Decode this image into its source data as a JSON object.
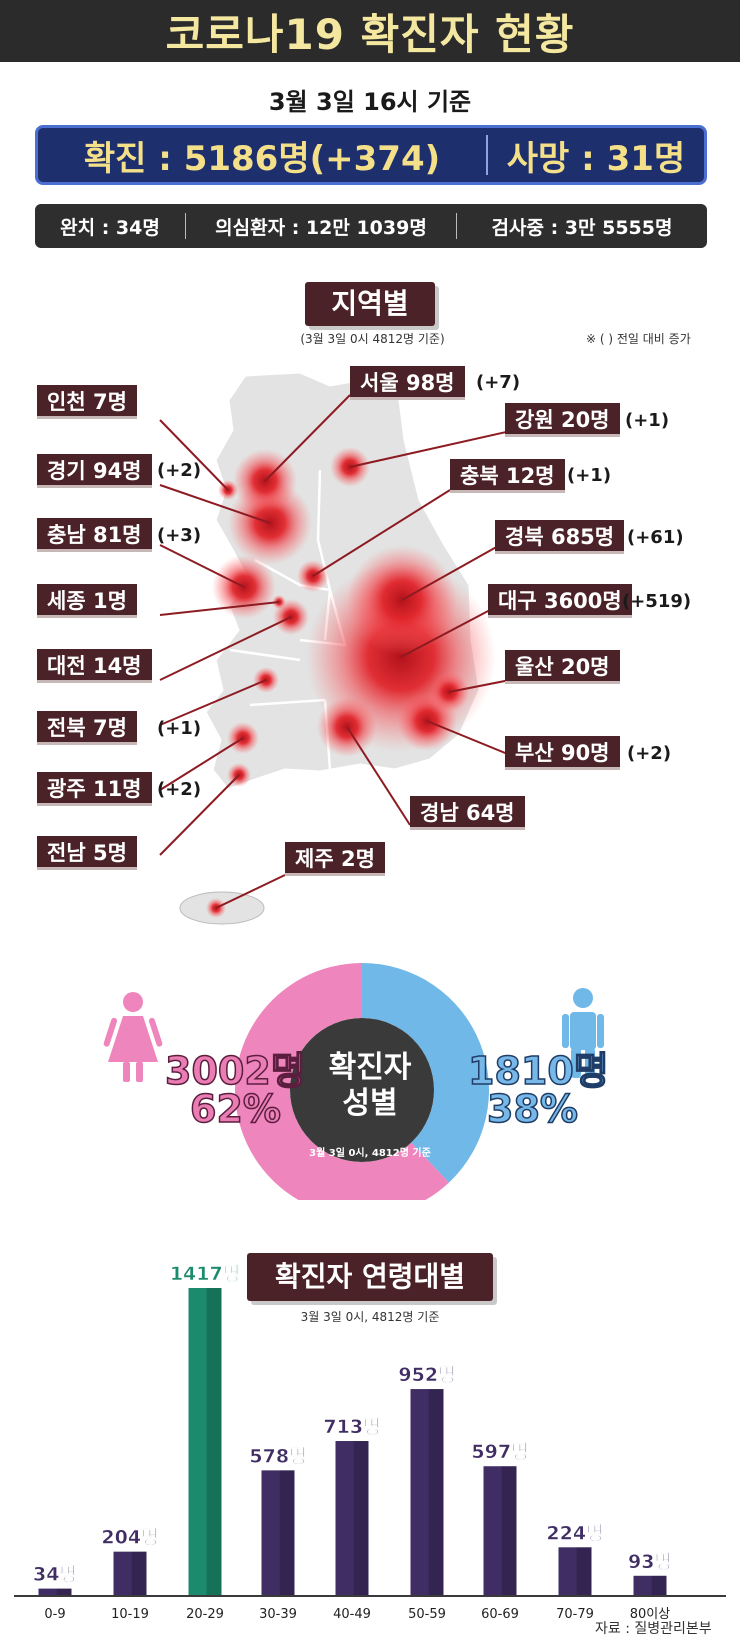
{
  "header": {
    "title": "코로나19 확진자 현황",
    "date": "3월 3일 16시 기준"
  },
  "summary": {
    "confirmed": "확진 : 5186명(+374)",
    "death": "사망 : 31명",
    "recovered": "완치 : 34명",
    "suspected": "의심환자 : 12만 1039명",
    "testing": "검사중 : 3만 5555명"
  },
  "regional": {
    "tag": "지역별",
    "note": "(3월 3일 0시 4812명 기준)",
    "prev_note": "※ ( ) 전일 대비 증가",
    "regions": [
      {
        "label": "인천 7명",
        "change": ""
      },
      {
        "label": "서울 98명",
        "change": "(+7)"
      },
      {
        "label": "강원 20명",
        "change": "(+1)"
      },
      {
        "label": "경기 94명",
        "change": "(+2)"
      },
      {
        "label": "충북 12명",
        "change": "(+1)"
      },
      {
        "label": "충남 81명",
        "change": "(+3)"
      },
      {
        "label": "경북 685명",
        "change": "(+61)"
      },
      {
        "label": "세종 1명",
        "change": ""
      },
      {
        "label": "대구 3600명",
        "change": "(+519)"
      },
      {
        "label": "대전 14명",
        "change": ""
      },
      {
        "label": "울산 20명",
        "change": ""
      },
      {
        "label": "전북 7명",
        "change": "(+1)"
      },
      {
        "label": "부산 90명",
        "change": "(+2)"
      },
      {
        "label": "광주 11명",
        "change": "(+2)"
      },
      {
        "label": "경남 64명",
        "change": ""
      },
      {
        "label": "전남 5명",
        "change": ""
      },
      {
        "label": "제주 2명",
        "change": ""
      }
    ]
  },
  "gender": {
    "center_title_1": "확진자",
    "center_title_2": "성별",
    "center_note": "3월 3일 0시, 4812명 기준",
    "female_count": "3002명",
    "female_pct": "62%",
    "male_count": "1810명",
    "male_pct": "38%",
    "female_color": "#ee86bd",
    "male_color": "#6fb8e8"
  },
  "age": {
    "tag": "확진자 연령대별",
    "note": "3월 3일 0시, 4812명 기준"
  },
  "chart_data": {
    "type": "bar",
    "categories": [
      "0-9",
      "10-19",
      "20-29",
      "30-39",
      "40-49",
      "50-59",
      "60-69",
      "70-79",
      "80이상"
    ],
    "values": [
      34,
      204,
      1417,
      578,
      713,
      952,
      597,
      224,
      93
    ],
    "value_labels": [
      "34명",
      "204명",
      "1417명",
      "578명",
      "713명",
      "952명",
      "597명",
      "224명",
      "93명"
    ],
    "colors": [
      "#3f2d63",
      "#3f2d63",
      "#1c8a6d",
      "#3f2d63",
      "#3f2d63",
      "#3f2d63",
      "#3f2d63",
      "#3f2d63",
      "#3f2d63"
    ],
    "ylim": [
      0,
      1417
    ]
  },
  "source": "자료 : 질병관리본부"
}
